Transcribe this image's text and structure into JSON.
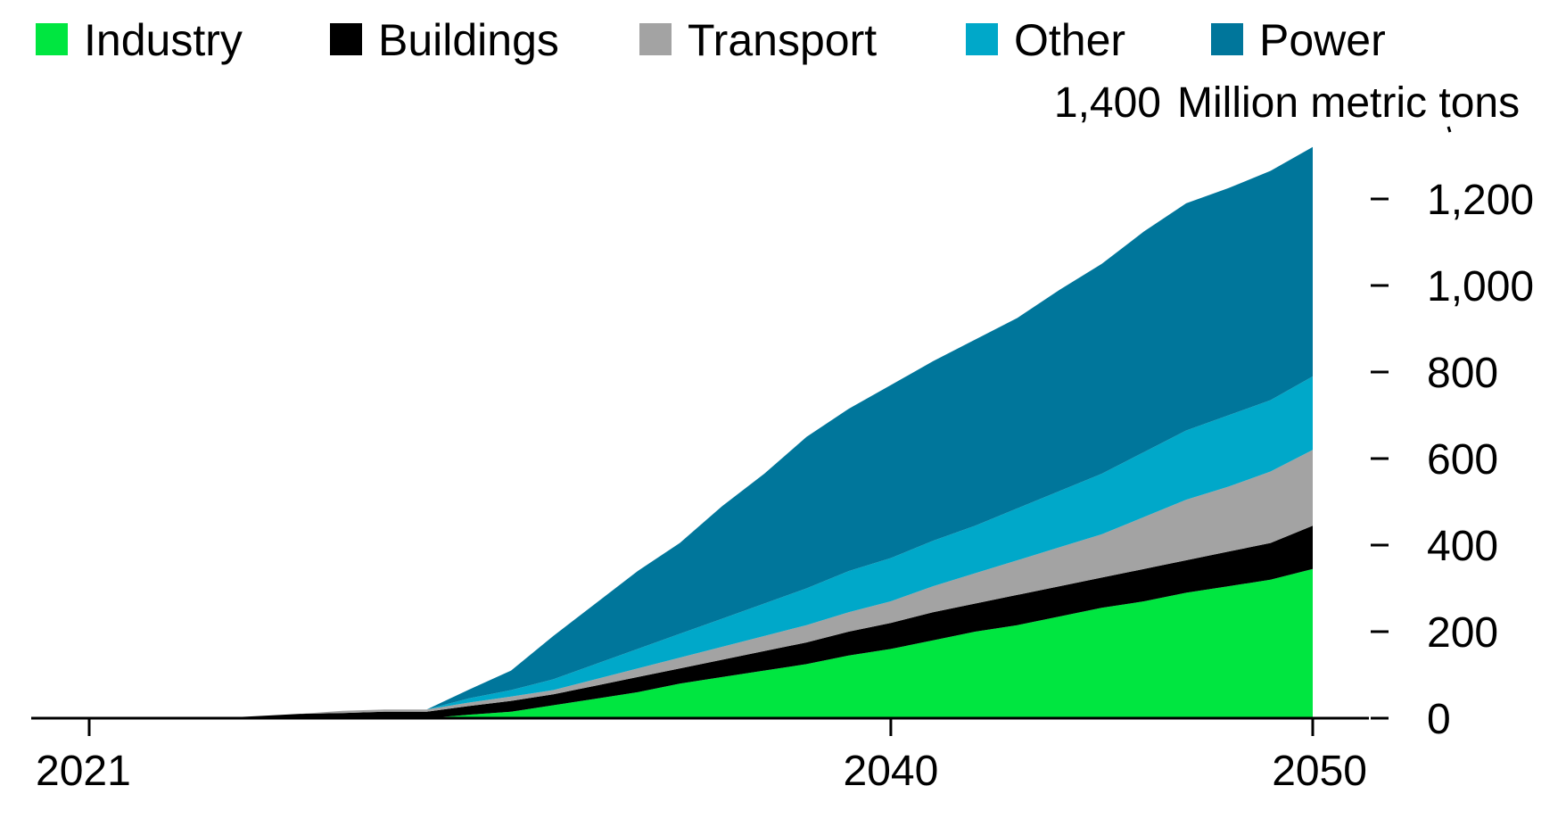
{
  "chart_data": {
    "type": "area",
    "stacked": true,
    "title": "",
    "xlabel": "",
    "ylabel": "Million metric tons",
    "ylim": [
      0,
      1400
    ],
    "y_ticks": [
      0,
      200,
      400,
      600,
      800,
      1000,
      1200
    ],
    "y_tick_labels": [
      "0",
      "200",
      "400",
      "600",
      "800",
      "1,000",
      "1,200"
    ],
    "y_top_tick_label": "1,400",
    "x_ticks": [
      2021,
      2040,
      2050
    ],
    "x_tick_labels": [
      "2021",
      "2040",
      "2050"
    ],
    "legend_position": "top",
    "x": [
      2021,
      2022,
      2023,
      2024,
      2025,
      2026,
      2027,
      2028,
      2029,
      2030,
      2031,
      2032,
      2033,
      2034,
      2035,
      2036,
      2037,
      2038,
      2039,
      2040,
      2041,
      2042,
      2043,
      2044,
      2045,
      2046,
      2047,
      2048,
      2049,
      2050
    ],
    "series": [
      {
        "name": "Industry",
        "color": "#00e640",
        "values": [
          0,
          0,
          0,
          0,
          0,
          0,
          0,
          0,
          0,
          8,
          15,
          30,
          45,
          60,
          80,
          95,
          110,
          125,
          145,
          160,
          180,
          200,
          215,
          235,
          255,
          270,
          290,
          305,
          320,
          345
        ]
      },
      {
        "name": "Buildings",
        "color": "#000000",
        "values": [
          0,
          0,
          0,
          0,
          5,
          10,
          12,
          15,
          15,
          20,
          25,
          25,
          30,
          35,
          35,
          40,
          45,
          50,
          55,
          60,
          65,
          65,
          70,
          70,
          70,
          75,
          75,
          80,
          85,
          100
        ]
      },
      {
        "name": "Transport",
        "color": "#a3a3a3",
        "values": [
          0,
          0,
          0,
          0,
          0,
          0,
          5,
          5,
          5,
          8,
          10,
          10,
          15,
          20,
          25,
          30,
          35,
          40,
          45,
          50,
          60,
          70,
          80,
          90,
          100,
          120,
          140,
          150,
          165,
          175
        ]
      },
      {
        "name": "Other",
        "color": "#00a8c9",
        "values": [
          0,
          0,
          0,
          0,
          0,
          0,
          0,
          0,
          0,
          10,
          15,
          25,
          35,
          45,
          55,
          65,
          75,
          85,
          95,
          100,
          105,
          110,
          120,
          130,
          140,
          150,
          160,
          165,
          165,
          170
        ]
      },
      {
        "name": "Power",
        "color": "#00769b",
        "values": [
          0,
          0,
          0,
          0,
          0,
          0,
          0,
          0,
          0,
          20,
          45,
          100,
          140,
          180,
          210,
          260,
          300,
          350,
          375,
          400,
          415,
          430,
          440,
          465,
          485,
          510,
          525,
          525,
          530,
          530
        ]
      }
    ]
  }
}
